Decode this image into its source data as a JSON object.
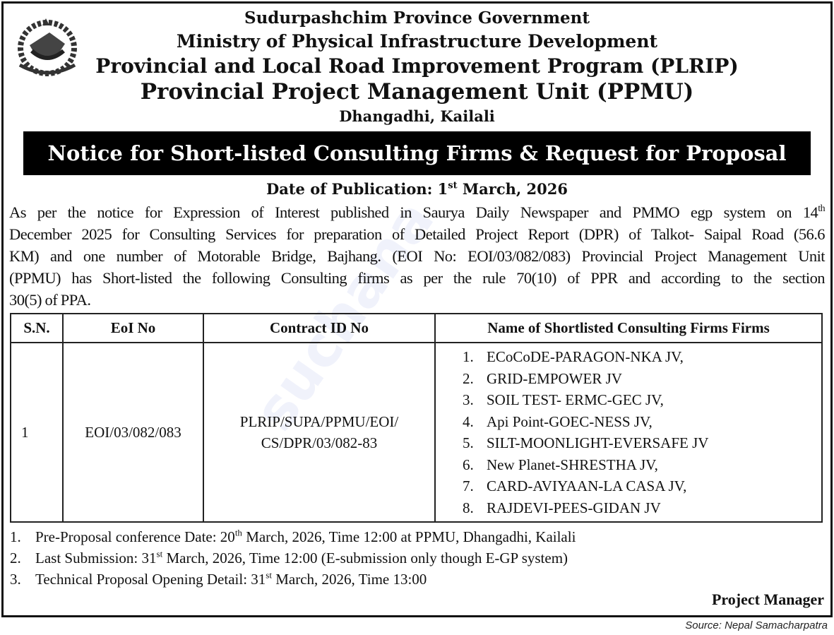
{
  "header": {
    "line1": "Sudurpashchim Province Government",
    "line2": "Ministry of Physical Infrastructure Development",
    "line3": "Provincial and Local Road Improvement Program (PLRIP)",
    "line4": "Provincial Project Management Unit (PPMU)",
    "line5": "Dhangadhi, Kailali",
    "emblem": "nepal-government-emblem"
  },
  "notice_title": "Notice for Short-listed Consulting Firms & Request for Proposal",
  "publication": {
    "label": "Date of Publication: 1",
    "sup": "st",
    "rest": " March, 2026"
  },
  "paragraph": {
    "line1": "As per the notice for Expression of Interest published in Saurya Daily Newspaper and PMMO egp system on 14",
    "line1_sup": "th",
    "line2": "December 2025 for Consulting Services for preparation of Detailed Project Report (DPR) of Talkot- Saipal Road (56.6",
    "line3": "KM) and one number of Motorable Bridge, Bajhang. (EOI No: EOI/03/082/083) Provincial Project Management Unit",
    "line4": "(PPMU) has Short-listed the following Consulting firms as per the rule 70(10) of PPR  and according to the section",
    "line5": "30(5) of PPA."
  },
  "table": {
    "headers": [
      "S.N.",
      "EoI No",
      "Contract ID No",
      "Name of Shortlisted Consulting Firms Firms"
    ],
    "row": {
      "sn": "1",
      "eoi": "EOI/03/082/083",
      "contract_line1": "PLRIP/SUPA/PPMU/EOI/",
      "contract_line2": "CS/DPR/03/082-83",
      "firms": [
        {
          "n": "1.",
          "name": "ECoCoDE-PARAGON-NKA JV,"
        },
        {
          "n": "2.",
          "name": "GRID-EMPOWER JV"
        },
        {
          "n": "3.",
          "name": "SOIL TEST- ERMC-GEC JV,"
        },
        {
          "n": "4.",
          "name": "Api Point-GOEC-NESS JV,"
        },
        {
          "n": "5.",
          "name": "SILT-MOONLIGHT-EVERSAFE JV"
        },
        {
          "n": "6.",
          "name": "New Planet-SHRESTHA JV,"
        },
        {
          "n": "7.",
          "name": "CARD-AVIYAAN-LA CASA JV,"
        },
        {
          "n": "8.",
          "name": "RAJDEVI-PEES-GIDAN JV"
        }
      ]
    }
  },
  "notes": [
    {
      "n": "1.",
      "a": "Pre-Proposal conference Date: 20",
      "sup": "th",
      "b": " March, 2026, Time 12:00 at PPMU, Dhangadhi, Kailali"
    },
    {
      "n": "2.",
      "a": "Last Submission: 31",
      "sup": "st",
      "b": " March, 2026, Time 12:00 (E-submission only though E-GP system)"
    },
    {
      "n": "3.",
      "a": "Technical Proposal Opening Detail: 31",
      "sup": "st",
      "b": " March, 2026, Time 13:00"
    }
  ],
  "signature": "Project Manager",
  "source": "Source: Nepal Samacharpatra",
  "watermark": "suchana"
}
